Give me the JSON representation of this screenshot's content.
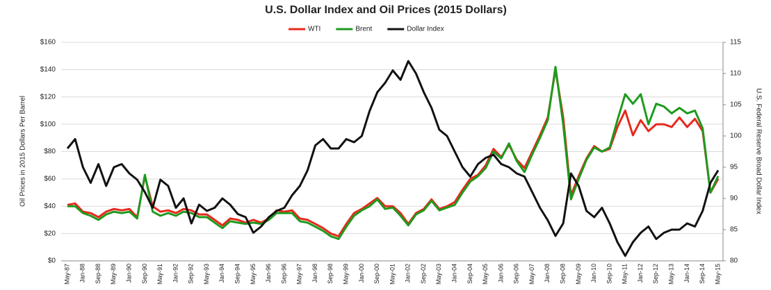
{
  "chart_data": {
    "type": "line",
    "title": "U.S. Dollar Index and Oil Prices (2015 Dollars)",
    "ylabel": "Oil Prices in 2015 Dollars Per Barrel",
    "y2label": "U.S. Federal Reserve Broad Dollar Index",
    "categories": [
      "May-87",
      null,
      "Jan-88",
      null,
      "Sep-88",
      null,
      "May-89",
      null,
      "Jan-90",
      null,
      "Sep-90",
      null,
      "May-91",
      null,
      "Jan-92",
      null,
      "Sep-92",
      null,
      "May-93",
      null,
      "Jan-94",
      null,
      "Sep-94",
      null,
      "May-95",
      null,
      "Jan-96",
      null,
      "Sep-96",
      null,
      "May-97",
      null,
      "Jan-98",
      null,
      "Sep-98",
      null,
      "May-99",
      null,
      "Jan-00",
      null,
      "Sep-00",
      null,
      "May-01",
      null,
      "Jan-02",
      null,
      "Sep-02",
      null,
      "May-03",
      null,
      "Jan-04",
      null,
      "Sep-04",
      null,
      "May-05",
      null,
      "Jan-06",
      null,
      "Sep-06",
      null,
      "May-07",
      null,
      "Jan-08",
      null,
      "Sep-08",
      null,
      "May-09",
      null,
      "Jan-10",
      null,
      "Sep-10",
      null,
      "May-11",
      null,
      "Jan-12",
      null,
      "Sep-12",
      null,
      "May-13",
      null,
      "Jan-14",
      null,
      "Sep-14",
      null,
      "May-15"
    ],
    "series": [
      {
        "name": "WTI",
        "color": "#e8281c",
        "values": [
          41,
          42,
          36,
          35,
          32,
          36,
          38,
          37,
          38,
          32,
          62,
          40,
          36,
          37,
          35,
          38,
          37,
          34,
          34,
          30,
          26,
          31,
          30,
          28,
          30,
          28,
          31,
          37,
          36,
          37,
          31,
          30,
          27,
          24,
          20,
          18,
          27,
          35,
          38,
          42,
          46,
          40,
          40,
          35,
          27,
          35,
          38,
          45,
          38,
          40,
          43,
          52,
          60,
          63,
          70,
          82,
          76,
          85,
          74,
          68,
          80,
          92,
          105,
          140,
          105,
          48,
          62,
          75,
          84,
          80,
          82,
          98,
          110,
          92,
          103,
          95,
          100,
          100,
          98,
          105,
          98,
          104,
          95,
          50,
          60
        ]
      },
      {
        "name": "Brent",
        "color": "#1e9a1e",
        "values": [
          40,
          40,
          35,
          33,
          30,
          34,
          36,
          35,
          36,
          31,
          63,
          36,
          33,
          35,
          33,
          36,
          35,
          32,
          32,
          28,
          24,
          29,
          28,
          27,
          28,
          27,
          30,
          35,
          35,
          35,
          29,
          28,
          25,
          22,
          18,
          16,
          25,
          33,
          37,
          40,
          45,
          38,
          39,
          33,
          26,
          34,
          37,
          44,
          37,
          39,
          41,
          50,
          58,
          62,
          68,
          80,
          75,
          86,
          73,
          65,
          78,
          90,
          103,
          142,
          100,
          45,
          60,
          74,
          83,
          80,
          83,
          103,
          122,
          115,
          122,
          100,
          115,
          113,
          108,
          112,
          108,
          110,
          97,
          50,
          62
        ]
      },
      {
        "name": "Dollar Index",
        "color": "#111111",
        "axis": "y2",
        "values": [
          98,
          99.5,
          95,
          92.5,
          95.5,
          92,
          95,
          95.5,
          94,
          93,
          91,
          88.5,
          93,
          92,
          88.5,
          90,
          86,
          89,
          88,
          88.5,
          90,
          89,
          87.5,
          87,
          84.5,
          85.5,
          87,
          88,
          88.5,
          90.5,
          92,
          94.5,
          98.5,
          99.5,
          98,
          98,
          99.5,
          99,
          100,
          104,
          107,
          108.5,
          110.5,
          109,
          112,
          110,
          107,
          104.5,
          101,
          100,
          97.5,
          95,
          93.5,
          95.5,
          96.5,
          97,
          95.5,
          95,
          94,
          93.5,
          91,
          88.5,
          86.5,
          84,
          86,
          94,
          92,
          88,
          87,
          88.5,
          86,
          83,
          80.8,
          83,
          84.5,
          85.5,
          83.5,
          84.5,
          85,
          85,
          86,
          85.5,
          88,
          92.5,
          94.5
        ]
      }
    ],
    "ylim": [
      0,
      160
    ],
    "yticks": [
      {
        "value": 0,
        "label": "$0"
      },
      {
        "value": 20,
        "label": "$20"
      },
      {
        "value": 40,
        "label": "$40"
      },
      {
        "value": 60,
        "label": "$60"
      },
      {
        "value": 80,
        "label": "$80"
      },
      {
        "value": 100,
        "label": "$100"
      },
      {
        "value": 120,
        "label": "$120"
      },
      {
        "value": 140,
        "label": "$140"
      },
      {
        "value": 160,
        "label": "$160"
      }
    ],
    "y2lim": [
      80,
      115
    ],
    "y2ticks": [
      80,
      85,
      90,
      95,
      100,
      105,
      110,
      115
    ],
    "grid": true,
    "legend": "top"
  }
}
